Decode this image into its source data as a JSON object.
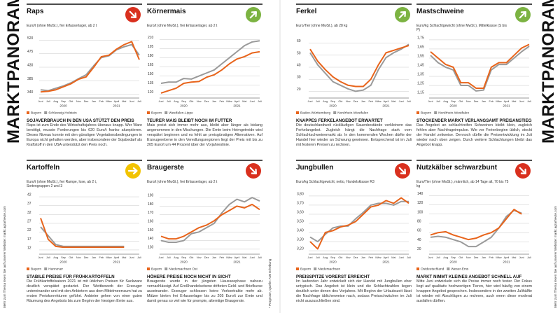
{
  "side": {
    "title_left": "MARKTPANORAMA",
    "note_left": "Mehr zum Thema lesen Sie auf unserer Website: markt.agrarheute.com",
    "source": "* Prognose, Quelle: AMI Erhebung",
    "title_right": "MARKTPANORAMA",
    "note_right": "Mehr zum Thema lesen Sie auf unserer Website: markt.agrarheute.com"
  },
  "chart_data": [
    {
      "type": "line",
      "title": "Raps",
      "subtitle": "Euro/t (ohne MwSt.), frei Erfasserlager, ab 2 t",
      "trend": "down",
      "trend_color": "#d9301e",
      "categories": [
        "Juni",
        "Juli",
        "Aug",
        "Sep",
        "Okt",
        "Nov",
        "Dez",
        "Jan",
        "Feb",
        "März",
        "April",
        "Mai",
        "Juni",
        "Juli"
      ],
      "years": [
        "2020",
        "2021"
      ],
      "series": [
        {
          "name": "Bayern",
          "color": "#e8641b",
          "values": [
            348,
            350,
            355,
            365,
            375,
            390,
            398,
            430,
            465,
            470,
            490,
            505,
            515,
            455
          ]
        },
        {
          "name": "Schleswig-Holstein",
          "color": "#9a9a9a",
          "values": [
            355,
            352,
            360,
            368,
            378,
            392,
            405,
            435,
            462,
            468,
            488,
            498,
            505,
            470
          ]
        }
      ],
      "ylim": [
        330,
        530
      ],
      "yticks": [
        340,
        385,
        430,
        475,
        520
      ],
      "grid": true,
      "headline": "SOJAVERBRAUCH IN DEN USA STÜTZT DEN PREIS",
      "text": "Raps ist zum Ende des Wirtschaftsjahres überaus knapp. Wer Ware benötigt, musste Forderungen bis 620 Euro/t franko akzeptieren. Dieses Niveau konnte mit den günstigen Vegetationsbedingungen in Europa nicht gehalten werden, aber insbesondere der Sojabedarf als Kraftstoff in den USA unterstützt den Preis noch."
    },
    {
      "type": "line",
      "title": "Körnermais",
      "subtitle": "Euro/t (ohne MwSt.), frei Erfasserlager, ab 2 t",
      "trend": "up",
      "trend_color": "#7cb342",
      "categories": [
        "Juni",
        "Juli",
        "Aug",
        "Sep",
        "Okt",
        "Nov",
        "Dez",
        "Jan",
        "Feb",
        "März",
        "April",
        "Mai",
        "Juni",
        "Juli"
      ],
      "years": [
        "2020",
        "2021"
      ],
      "series": [
        {
          "name": "Bayern",
          "color": "#e8641b",
          "values": [
            122,
            126,
            130,
            138,
            140,
            141,
            148,
            152,
            160,
            170,
            178,
            182,
            188,
            190
          ]
        },
        {
          "name": "Westfalen-Lippe",
          "color": "#9a9a9a",
          "values": [
            138,
            140,
            140,
            146,
            145,
            150,
            155,
            160,
            170,
            180,
            190,
            200,
            206,
            208
          ]
        }
      ],
      "ylim": [
        115,
        214
      ],
      "yticks": [
        120,
        135,
        150,
        165,
        180,
        195,
        210
      ],
      "grid": true,
      "headline": "TEURER MAIS BLEIBT NOCH IM FUTTER",
      "text": "Mais preist sich immer mehr aus, bleibt aber länger als bislang angenommen in den Mischungen. Die Ernte beim Heimgetreide wird verspätet beginnen und es fehlt an preisgünstigen Alternativen. Auf Erzeugerebene in den Veredlungsregionen liegt der Preis mit bis zu 205 Euro/t um 44 Prozent über der Vorjahreslinie."
    },
    {
      "type": "line",
      "title": "Ferkel",
      "subtitle": "Euro/Tier (ohne MwSt.), ab 28 kg",
      "trend": "up",
      "trend_color": "#7cb342",
      "categories": [
        "Juni",
        "Juli",
        "Aug",
        "Sep",
        "Okt",
        "Nov",
        "Dez",
        "Jan",
        "Feb",
        "März",
        "April",
        "Mai",
        "Juni",
        "Juli"
      ],
      "years": [
        "2020",
        "2021"
      ],
      "series": [
        {
          "name": "Baden-Württemberg",
          "color": "#e8641b",
          "values": [
            55,
            45,
            38,
            32,
            28,
            25,
            24,
            24,
            30,
            42,
            52,
            54,
            56,
            58
          ]
        },
        {
          "name": "Nordrhein-Westfalen",
          "color": "#9a9a9a",
          "values": [
            52,
            42,
            35,
            28,
            25,
            22,
            20,
            21,
            25,
            38,
            48,
            52,
            55,
            59
          ]
        }
      ],
      "ylim": [
        15,
        65
      ],
      "yticks": [
        20,
        30,
        40,
        50,
        60
      ],
      "grid": true,
      "headline": "KNAPPES FERKELANGEBOT ERWARTET",
      "text": "Die deutschlandweit rückläufigen Sauenbestände verkleinern das Ferkelangebot. Zugleich hängt die Nachfrage stark vom Schlachtschweinemarkt ab. In den kommenden Wochen dürfte der Handel hier wieder an Schwung gewinnen. Entsprechend ist im Juli mit festeren Preisen zu rechnen."
    },
    {
      "type": "line",
      "title": "Mastschweine",
      "subtitle": "Euro/kg Schlachtgewicht (ohne MwSt.), Mittelklasse (S bis P)",
      "trend": "up",
      "trend_color": "#7cb342",
      "categories": [
        "Juni",
        "Juli",
        "Aug",
        "Sep",
        "Okt",
        "Nov",
        "Dez",
        "Jan",
        "Feb",
        "März",
        "April",
        "Mai",
        "Juni",
        "Juli"
      ],
      "years": [
        "2020",
        "2021"
      ],
      "series": [
        {
          "name": "Bayern",
          "color": "#e8641b",
          "values": [
            1.62,
            1.55,
            1.48,
            1.45,
            1.28,
            1.28,
            1.22,
            1.22,
            1.45,
            1.5,
            1.5,
            1.58,
            1.66,
            1.7
          ]
        },
        {
          "name": "Nordrhein-Westfalen",
          "color": "#9a9a9a",
          "values": [
            1.58,
            1.5,
            1.45,
            1.42,
            1.25,
            1.25,
            1.19,
            1.2,
            1.42,
            1.48,
            1.48,
            1.55,
            1.62,
            1.68
          ]
        }
      ],
      "ylim": [
        1.12,
        1.78
      ],
      "yticks": [
        {
          "value": 1.15,
          "label": "1,15"
        },
        {
          "value": 1.25,
          "label": "1,25"
        },
        {
          "value": 1.35,
          "label": "1,35"
        },
        {
          "value": 1.45,
          "label": "1,45"
        },
        {
          "value": 1.55,
          "label": "1,55"
        },
        {
          "value": 1.65,
          "label": "1,65"
        },
        {
          "value": 1.75,
          "label": "1,75"
        }
      ],
      "grid": true,
      "headline": "STOCKENDER MARKT VERLANGSAMT PREISANSTIEG",
      "text": "Das Angebot an schlachtreifen Schweinen bleibt klein, zugleich fehlen aber Nachfrageimpulse. Wie vor Ferienbeginn üblich, stockt der Handel zeitweise. Dennoch dürfte die Preisentwicklung im Juli wieder nach oben zeigen. Durch weitere Schlachtungen bleibt das Angebot knapp."
    },
    {
      "type": "line",
      "title": "Kartoffeln",
      "subtitle": "Euro/t (ohne MwSt.), frei Rampe, lose, ab 2 t, Sortengruppen 2 und 3",
      "trend": "flat",
      "trend_color": "#f2c300",
      "categories": [
        "Juni",
        "Juli",
        "Aug",
        "Sep",
        "Okt",
        "Nov",
        "Dez",
        "Jan",
        "Feb",
        "März",
        "April",
        "Mai",
        "Juni",
        "Juli"
      ],
      "years": [
        "2020",
        "2021"
      ],
      "series": [
        {
          "name": "Bayern",
          "color": "#e8641b",
          "values": [
            30,
            18,
            14,
            13.5,
            13.5,
            13.5,
            13.5,
            13.5,
            13.5,
            13.5,
            13.5,
            13.5,
            null,
            null
          ]
        },
        {
          "name": "Hannover",
          "color": "#9a9a9a",
          "values": [
            25,
            20,
            15,
            14,
            14,
            14,
            14,
            14,
            14,
            14,
            14,
            14,
            null,
            null
          ]
        }
      ],
      "ylim": [
        10,
        44
      ],
      "yticks": [
        12,
        17,
        22,
        27,
        32,
        37,
        42
      ],
      "grid": true,
      "headline": "STABILE PREISE FÜR FRÜHKARTOFFELN",
      "text": "Die Frühkartoffelsaison 2021 ist mit üblichen Preisen für Sackware deutlich verspätet gestartet. Der Wettbewerb der Erzeuger untereinander und mit den Anbietern aus dem Mittelmeerraum hat zu ersten Preiskorrekturen geführt. Anbieter gehen von einer guten Räumung des Angebots bis zum Beginn der hiesigen Ernte aus."
    },
    {
      "type": "line",
      "title": "Braugerste",
      "subtitle": "Euro/t (ohne MwSt.), frei Erfasserlager, ab 2 t",
      "trend": "down",
      "trend_color": "#d9301e",
      "categories": [
        "Juni",
        "Juli",
        "Aug",
        "Sep",
        "Okt",
        "Nov",
        "Dez",
        "Jan",
        "Feb",
        "März",
        "April",
        "Mai",
        "Juni",
        "Juli"
      ],
      "years": [
        "2020",
        "2021"
      ],
      "series": [
        {
          "name": "Bayern",
          "color": "#e8641b",
          "values": [
            145,
            142,
            142,
            145,
            150,
            155,
            158,
            163,
            170,
            175,
            180,
            178,
            182,
            176
          ]
        },
        {
          "name": "Niedersachsen Ost",
          "color": "#9a9a9a",
          "values": [
            140,
            138,
            138,
            140,
            148,
            150,
            155,
            160,
            172,
            182,
            188,
            185,
            190,
            186
          ]
        }
      ],
      "ylim": [
        125,
        195
      ],
      "yticks": [
        130,
        140,
        150,
        160,
        170,
        180,
        190
      ],
      "grid": true,
      "headline": "HÖHERE PREISE NOCH NICHT IN SICHT",
      "text": "Braugerste wurde in der jüngsten Hausseephase nahezu vernachlässigt. Auf Großhandelsebene drifteten Geld- und Briefkurse auseinander. Erzeuger schlossen keine Vorkontrakte mehr ab. Mälzer bieten frei Erfasserlager bis zu 205 Euro/t zur Ernte und damit genau so viel wie für prompte, alterntige Braugerste."
    },
    {
      "type": "line",
      "title": "Jungbullen",
      "subtitle": "Euro/kg Schlachtgewicht, netto, Handelsklasse R3",
      "trend": "down",
      "trend_color": "#d9301e",
      "categories": [
        "Juni",
        "Juli",
        "Aug",
        "Sep",
        "Okt",
        "Nov",
        "Dez",
        "Jan",
        "Feb",
        "März",
        "April",
        "Mai",
        "Juni",
        "Juli"
      ],
      "years": [
        "2020",
        "2021"
      ],
      "series": [
        {
          "name": "Bayern",
          "color": "#e8641b",
          "values": [
            3.3,
            3.22,
            3.4,
            3.42,
            3.46,
            3.48,
            3.52,
            3.6,
            3.68,
            3.7,
            3.75,
            3.72,
            3.78,
            3.72
          ]
        },
        {
          "name": "Niedersachsen",
          "color": "#9a9a9a",
          "values": [
            3.35,
            3.3,
            3.38,
            3.45,
            3.47,
            3.47,
            3.55,
            3.62,
            3.7,
            3.72,
            3.72,
            3.7,
            3.74,
            3.74
          ]
        }
      ],
      "ylim": [
        3.17,
        3.83
      ],
      "yticks": [
        {
          "value": 3.2,
          "label": "3,20"
        },
        {
          "value": 3.3,
          "label": "3,30"
        },
        {
          "value": 3.4,
          "label": "3,40"
        },
        {
          "value": 3.5,
          "label": "3,50"
        },
        {
          "value": 3.6,
          "label": "3,60"
        },
        {
          "value": 3.7,
          "label": "3,70"
        },
        {
          "value": 3.8,
          "label": "3,80"
        }
      ],
      "grid": true,
      "headline": "PREISSPITZE VORERST ERREICHT",
      "text": "Im laufenden Jahr entwickelt sich der Handel mit Jungbullen eher untypisch. Das Angebot ist klein und die Schlachtzahlen liegen deutlich unter denen des Vorjahres. Mit Beginn der Urlaubszeit lässt die Nachfrage üblicherweise nach, sodass Preisschwächen im Juli nicht auszuschließen sind."
    },
    {
      "type": "line",
      "title": "Nutzkälber schwarzbunt",
      "subtitle": "Euro/Tier (ohne MwSt.), männlich, ab 14 Tage alt, 70 bis 75 kg",
      "trend": "down",
      "trend_color": "#d9301e",
      "categories": [
        "Juni",
        "Juli",
        "Aug",
        "Sep",
        "Okt",
        "Nov",
        "Dez",
        "Jan",
        "Feb",
        "März",
        "April",
        "Mai",
        "Juni",
        "Juli"
      ],
      "years": [
        "2020",
        "2021"
      ],
      "series": [
        {
          "name": "Ostdeutschland",
          "color": "#e8641b",
          "values": [
            55,
            60,
            62,
            55,
            50,
            45,
            48,
            55,
            60,
            70,
            90,
            110,
            100,
            null
          ]
        },
        {
          "name": "Weser-Ems",
          "color": "#9a9a9a",
          "values": [
            50,
            52,
            50,
            45,
            40,
            30,
            30,
            40,
            50,
            70,
            95,
            108,
            102,
            null
          ]
        }
      ],
      "ylim": [
        15,
        145
      ],
      "yticks": [
        20,
        40,
        60,
        80,
        100,
        120,
        140
      ],
      "grid": true,
      "headline": "MARKT NIMMT KLEINES ANGEBOT SCHNELL AUF",
      "text": "Mitte Juni entwickeln sich die Preise immer noch fester. Der Fokus liegt auf qualitativ hochwertigen Tieren, hier wird häufig von einem knappen Angebot gesprochen. Insbesondere in der zweiten Julihälfte ist wieder mit Abschlägen zu rechnen, auch wenn diese moderat ausfallen dürften."
    }
  ]
}
